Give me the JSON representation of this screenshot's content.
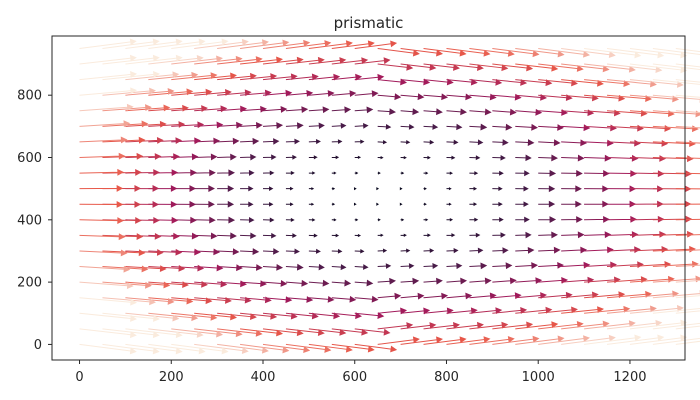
{
  "chart_data": {
    "type": "quiver",
    "title": "prismatic",
    "xlabel": "",
    "ylabel": "",
    "xlim": [
      -60,
      1320
    ],
    "ylim": [
      -50,
      990
    ],
    "x_ticks": [
      0,
      200,
      400,
      600,
      800,
      1000,
      1200
    ],
    "y_ticks": [
      0,
      200,
      400,
      600,
      800
    ],
    "grid": false,
    "legend": "none",
    "colormap": "rocket",
    "grid_x": [
      0,
      50,
      100,
      150,
      200,
      250,
      300,
      350,
      400,
      450,
      500,
      550,
      600,
      650,
      700,
      750,
      800,
      850,
      900,
      950,
      1000,
      1050,
      1100,
      1150,
      1200,
      1250,
      1300
    ],
    "grid_y": [
      0,
      50,
      100,
      150,
      200,
      250,
      300,
      350,
      400,
      450,
      500,
      550,
      600,
      650,
      700,
      750,
      800,
      850,
      900,
      950
    ],
    "field_center": [
      650,
      475
    ],
    "field_radii": [
      660,
      490
    ],
    "max_arrow_length": 95,
    "colors": {
      "axis": "#262626",
      "background": "#ffffff"
    }
  }
}
